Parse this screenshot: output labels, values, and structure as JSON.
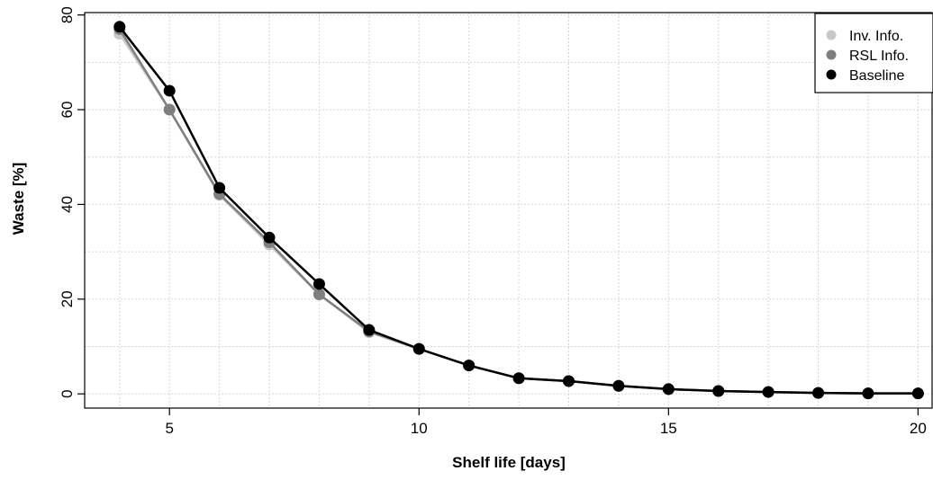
{
  "chart_data": {
    "type": "line",
    "title": "",
    "xlabel": "Shelf life [days]",
    "ylabel": "Waste [%]",
    "x": [
      4,
      5,
      6,
      7,
      8,
      9,
      10,
      11,
      12,
      13,
      14,
      15,
      16,
      17,
      18,
      19,
      20
    ],
    "xlim": [
      3.3,
      20.3
    ],
    "ylim": [
      -3,
      80.5
    ],
    "xticks": [
      5,
      10,
      15,
      20
    ],
    "yticks": [
      0,
      20,
      40,
      60,
      80
    ],
    "xtick_labels": [
      "5",
      "10",
      "15",
      "20"
    ],
    "ytick_labels": [
      "0",
      "20",
      "40",
      "60",
      "80"
    ],
    "grid": true,
    "legend_position": "top-right",
    "series": [
      {
        "name": "Inv. Info.",
        "color": "#c8c8c8",
        "values": [
          76.0,
          60.0,
          42.0,
          31.5,
          21.0,
          13.0,
          9.5,
          6.0,
          3.3,
          2.7,
          1.7,
          1.0,
          0.6,
          0.4,
          0.2,
          0.1,
          0.1
        ]
      },
      {
        "name": "RSL Info.",
        "color": "#7f7f7f",
        "values": [
          77.0,
          60.0,
          42.2,
          32.0,
          21.0,
          13.2,
          9.5,
          6.0,
          3.3,
          2.7,
          1.7,
          1.0,
          0.6,
          0.4,
          0.2,
          0.1,
          0.1
        ]
      },
      {
        "name": "Baseline",
        "color": "#000000",
        "values": [
          77.5,
          64.0,
          43.5,
          33.0,
          23.2,
          13.5,
          9.5,
          6.0,
          3.3,
          2.7,
          1.7,
          1.0,
          0.6,
          0.4,
          0.2,
          0.1,
          0.1
        ]
      }
    ]
  }
}
